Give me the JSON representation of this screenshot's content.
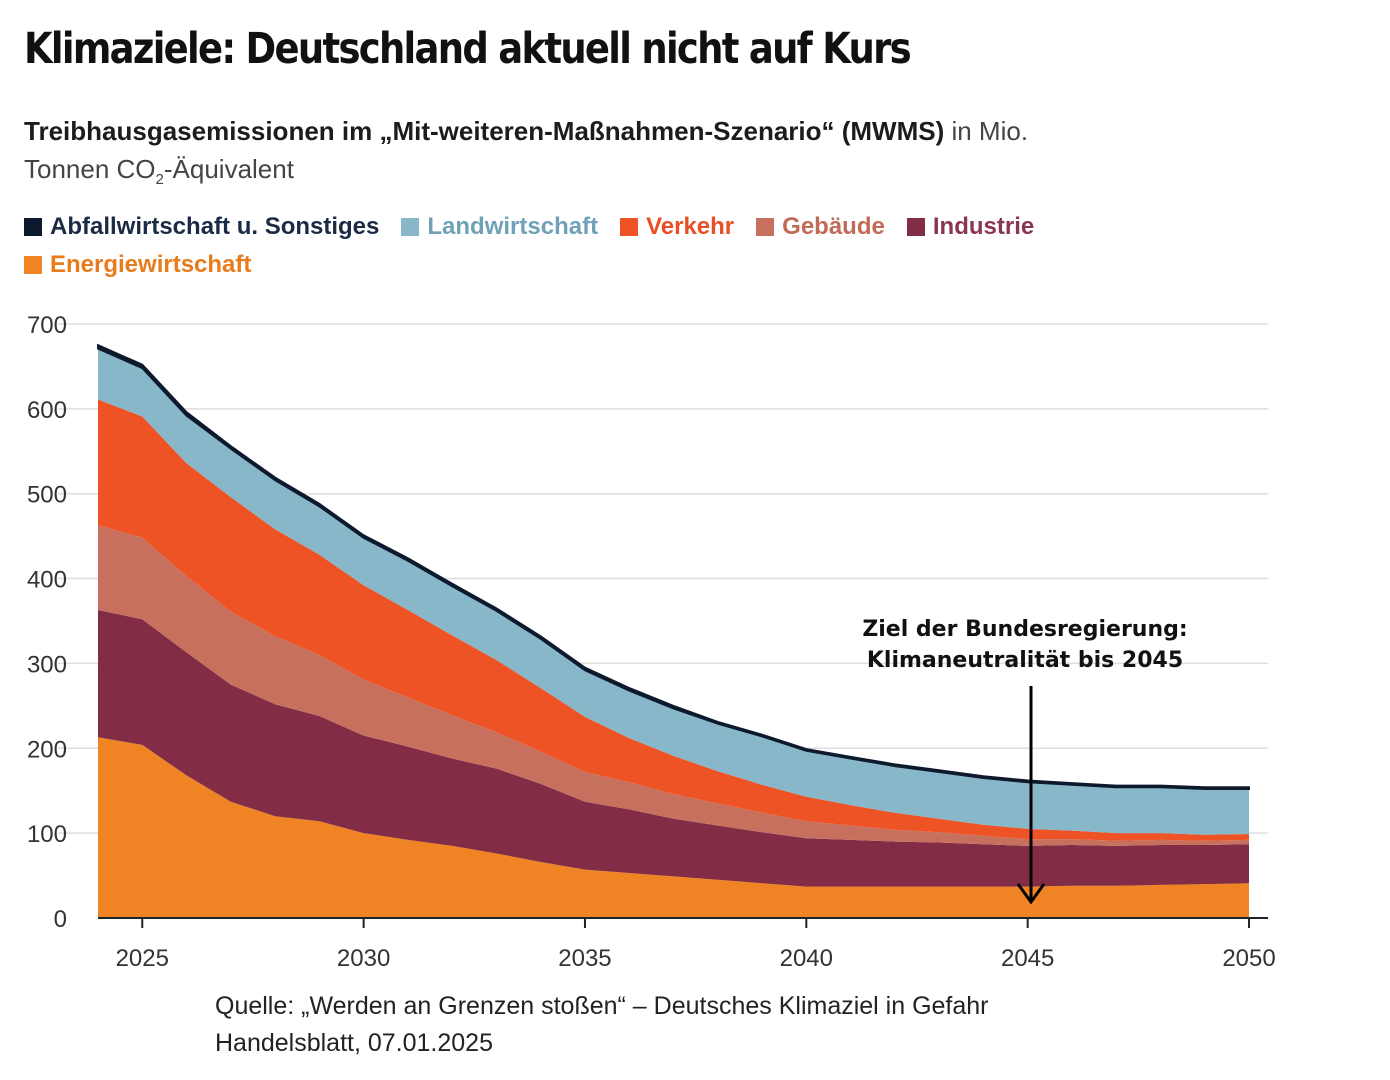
{
  "title": "Klimaziele: Deutschland aktuell nicht auf Kurs",
  "subtitle": {
    "bold_part": "Treibhausgasemissionen im „Mit-weiteren-Maßnahmen-Szenario“ (MWMS)",
    "normal_part": " in Mio.",
    "line2_prefix": "Tonnen CO",
    "line2_sub": "2",
    "line2_suffix": "-Äquivalent"
  },
  "annotation": {
    "line1": "Ziel der Bundesregierung:",
    "line2": "Klimaneutralität bis 2045"
  },
  "source": {
    "line1": "Quelle: „Werden an Grenzen stoßen“ – Deutsches Klimaziel in Gefahr",
    "line2": "Handelsblatt, 07.01.2025"
  },
  "chart_data": {
    "type": "area",
    "stacked": true,
    "title": "Klimaziele: Deutschland aktuell nicht auf Kurs",
    "ylabel": "Mio. Tonnen CO2-Äquivalent",
    "xlabel": "",
    "ylim": [
      0,
      700
    ],
    "xlim": [
      2024,
      2050
    ],
    "yticks": [
      0,
      100,
      200,
      300,
      400,
      500,
      600,
      700
    ],
    "xticks": [
      2025,
      2030,
      2035,
      2040,
      2045,
      2050
    ],
    "grid": true,
    "legend_position": "top-left",
    "x": [
      2024,
      2025,
      2026,
      2027,
      2028,
      2029,
      2030,
      2031,
      2032,
      2033,
      2034,
      2035,
      2036,
      2037,
      2038,
      2039,
      2040,
      2041,
      2042,
      2043,
      2044,
      2045,
      2046,
      2047,
      2048,
      2049,
      2050
    ],
    "series": [
      {
        "name": "Energiewirtschaft",
        "color": "#f08424",
        "values": [
          213,
          204,
          168,
          137,
          120,
          114,
          100,
          92,
          85,
          76,
          66,
          57,
          53,
          49,
          45,
          41,
          37,
          37,
          37,
          37,
          37,
          37,
          38,
          38,
          39,
          40,
          41
        ]
      },
      {
        "name": "Industrie",
        "color": "#822c45",
        "values": [
          150,
          148,
          145,
          138,
          132,
          124,
          115,
          110,
          103,
          100,
          92,
          80,
          75,
          68,
          64,
          60,
          57,
          55,
          53,
          52,
          50,
          48,
          48,
          47,
          47,
          46,
          46
        ]
      },
      {
        "name": "Gebäude",
        "color": "#c8705e",
        "values": [
          100,
          96,
          90,
          86,
          80,
          72,
          66,
          58,
          51,
          43,
          38,
          35,
          32,
          29,
          26,
          23,
          20,
          17,
          14,
          12,
          10,
          8,
          7,
          6,
          6,
          5,
          5
        ]
      },
      {
        "name": "Verkehr",
        "color": "#ee5326",
        "values": [
          148,
          143,
          133,
          135,
          126,
          118,
          111,
          103,
          94,
          85,
          75,
          65,
          52,
          45,
          38,
          33,
          29,
          24,
          20,
          16,
          13,
          12,
          10,
          9,
          8,
          7,
          7
        ]
      },
      {
        "name": "Landwirtschaft",
        "color": "#88b7ca",
        "values": [
          60,
          57,
          56,
          57,
          58,
          57,
          56,
          58,
          58,
          58,
          58,
          55,
          56,
          56,
          56,
          57,
          54,
          55,
          55,
          55,
          55,
          55,
          54,
          54,
          54,
          54,
          53
        ]
      },
      {
        "name": "Abfallwirtschaft u. Sonstiges",
        "color": "#0d1a2e",
        "values": [
          4,
          4,
          4,
          3,
          3,
          3,
          3,
          3,
          3,
          3,
          3,
          3,
          3,
          3,
          2,
          2,
          2,
          2,
          2,
          2,
          2,
          2,
          2,
          2,
          2,
          2,
          2
        ]
      }
    ],
    "legend": [
      {
        "name": "Abfallwirtschaft u. Sonstiges",
        "color": "#0d1a2e",
        "text_color": "#1b2a45"
      },
      {
        "name": "Landwirtschaft",
        "color": "#88b7ca",
        "text_color": "#6fa2b9"
      },
      {
        "name": "Verkehr",
        "color": "#ee5326",
        "text_color": "#e94f22"
      },
      {
        "name": "Gebäude",
        "color": "#c8705e",
        "text_color": "#c06a57"
      },
      {
        "name": "Industrie",
        "color": "#822c45",
        "text_color": "#8a3551"
      },
      {
        "name": "Energiewirtschaft",
        "color": "#f08424",
        "text_color": "#ea7b1b"
      }
    ],
    "annotations": [
      {
        "text": "Ziel der Bundesregierung: Klimaneutralität bis 2045",
        "x": 2045,
        "y": 15,
        "arrow": true
      }
    ]
  }
}
